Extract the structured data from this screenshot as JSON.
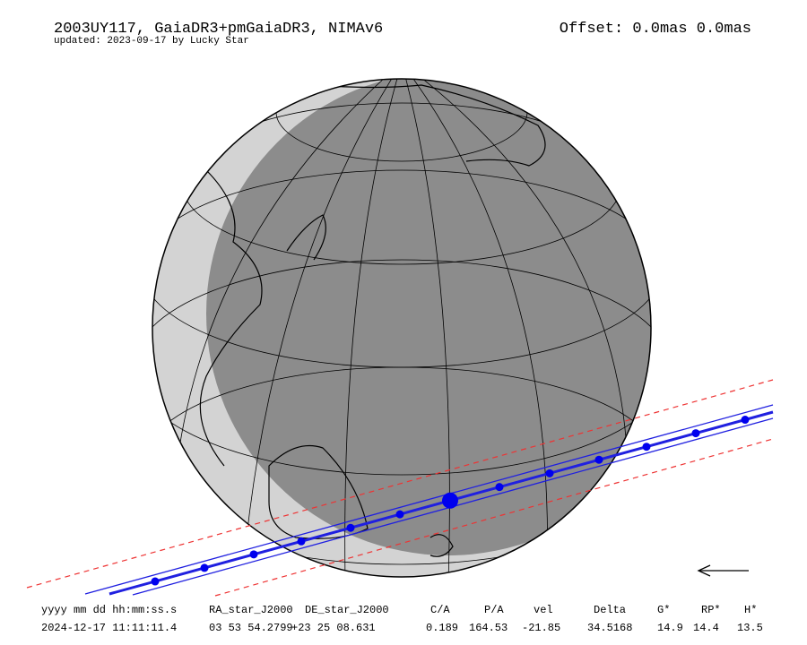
{
  "header": {
    "title": "2003UY117, GaiaDR3+pmGaiaDR3, NIMAv6",
    "subtitle": "updated: 2023-09-17 by Lucky Star",
    "offset": "Offset: 0.0mas 0.0mas"
  },
  "table": {
    "columns": [
      "yyyy mm dd hh:mm:ss.s",
      "RA_star_J2000",
      "DE_star_J2000",
      "C/A",
      "P/A",
      "vel",
      "Delta",
      "G*",
      "RP*",
      "H*"
    ],
    "rows": [
      [
        "2024-12-17 11:11:11.4",
        "03 53 54.2799",
        "+23 25 08.631",
        "0.189",
        "164.53",
        "-21.85",
        "34.5168",
        "14.9",
        "14.4",
        "13.5"
      ]
    ]
  }
}
